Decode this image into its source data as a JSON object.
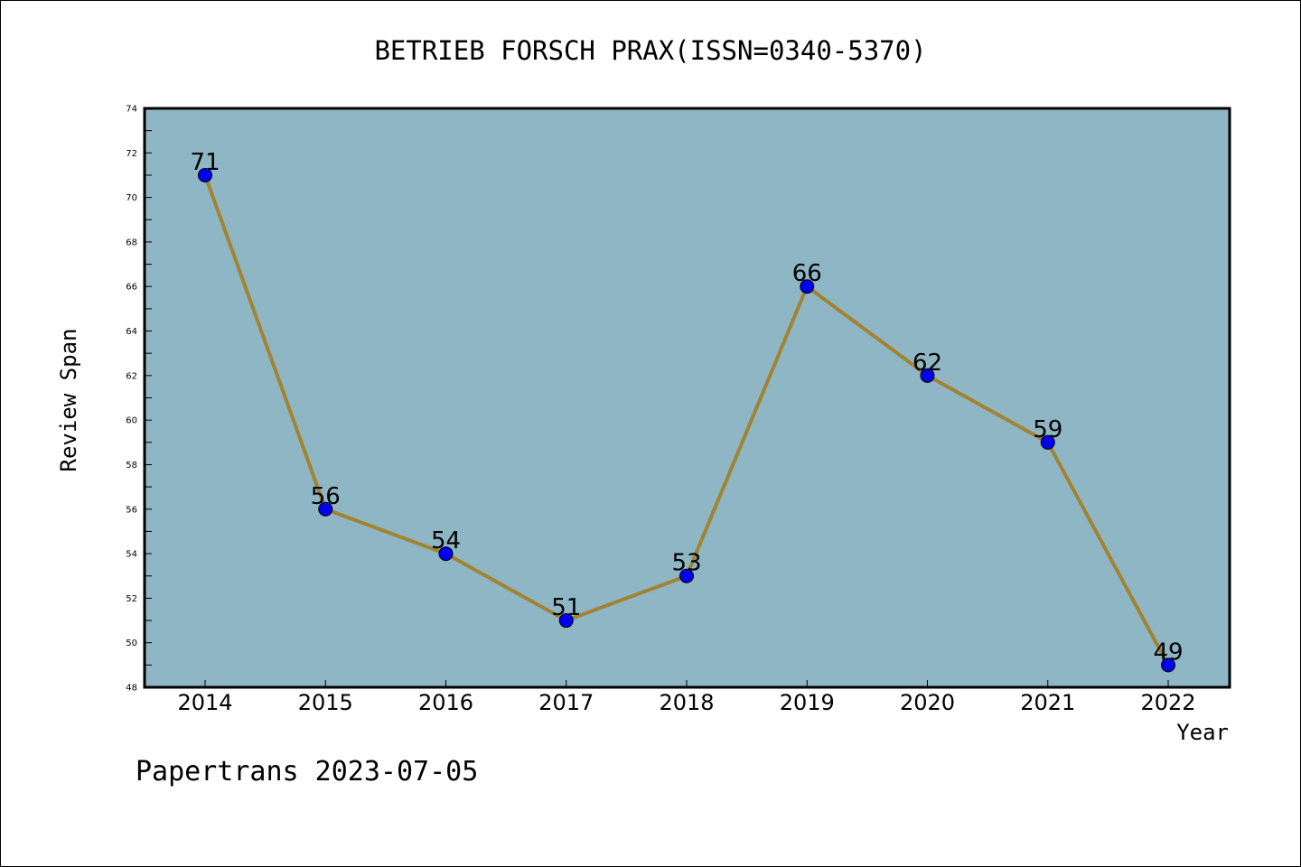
{
  "chart_data": {
    "type": "line",
    "title": "BETRIEB FORSCH PRAX(ISSN=0340-5370)",
    "xlabel": "Year",
    "ylabel": "Review Span",
    "categories": [
      "2014",
      "2015",
      "2016",
      "2017",
      "2018",
      "2019",
      "2020",
      "2021",
      "2022"
    ],
    "series": [
      {
        "values": [
          71,
          56,
          54,
          51,
          53,
          66,
          62,
          59,
          49
        ]
      }
    ],
    "ylim": [
      48,
      74
    ],
    "y_ticks": [
      "48",
      "50",
      "52",
      "54",
      "56",
      "58",
      "60",
      "62",
      "64",
      "66",
      "68",
      "70",
      "72",
      "74"
    ],
    "grid": false,
    "data_labels": true,
    "colors": {
      "plot_background": "#8fb6c4",
      "line": "#a08432",
      "marker": "#0000ee",
      "axis": "#000000"
    }
  },
  "footer": {
    "text": "Papertrans 2023-07-05"
  }
}
